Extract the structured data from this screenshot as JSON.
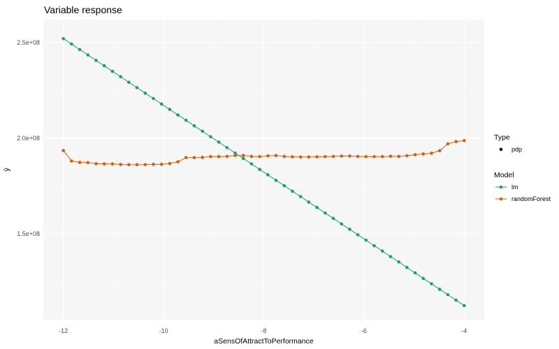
{
  "chart_data": {
    "type": "line",
    "title": "Variable response",
    "xlabel": "aSensOfAttractToPerformance",
    "ylabel": "ŷ",
    "xlim": [
      -12.4,
      -3.6
    ],
    "ylim": [
      105000000,
      262000000
    ],
    "x_ticks": [
      -12,
      -10,
      -8,
      -6,
      -4
    ],
    "x_tick_labels": [
      "-12",
      "-10",
      "-8",
      "-6",
      "-4"
    ],
    "y_ticks": [
      150000000,
      200000000,
      250000000
    ],
    "y_tick_labels": [
      "1.5e+08",
      "2.0e+08",
      "2.5e+08"
    ],
    "grid": true,
    "legend_position": "right",
    "legends": [
      {
        "title": "Type",
        "entries": [
          {
            "label": "pdp",
            "shape": "point",
            "color": "#000000"
          }
        ]
      },
      {
        "title": "Model",
        "entries": [
          {
            "label": "lm",
            "shape": "line-point",
            "color": "#1b9e77"
          },
          {
            "label": "randomForest",
            "shape": "line-point",
            "color": "#d95f02"
          }
        ]
      }
    ],
    "x": [
      -12.0,
      -11.8367,
      -11.6735,
      -11.5102,
      -11.3469,
      -11.1837,
      -11.0204,
      -10.8571,
      -10.6939,
      -10.5306,
      -10.3673,
      -10.2041,
      -10.0408,
      -9.8776,
      -9.7143,
      -9.551,
      -9.3878,
      -9.2245,
      -9.0612,
      -8.898,
      -8.7347,
      -8.5714,
      -8.4082,
      -8.2449,
      -8.0816,
      -7.9184,
      -7.7551,
      -7.5918,
      -7.4286,
      -7.2653,
      -7.102,
      -6.9388,
      -6.7755,
      -6.6122,
      -6.449,
      -6.2857,
      -6.1224,
      -5.9592,
      -5.7959,
      -5.6327,
      -5.4694,
      -5.3061,
      -5.1429,
      -4.9796,
      -4.8163,
      -4.6531,
      -4.4898,
      -4.3265,
      -4.1633,
      -4.0
    ],
    "series": [
      {
        "name": "lm",
        "color": "#1b9e77",
        "values": [
          252000000,
          249200000,
          246300000,
          243500000,
          240600000,
          237800000,
          234900000,
          232100000,
          229200000,
          226400000,
          223500000,
          220700000,
          217800000,
          215000000,
          212100000,
          209300000,
          206400000,
          203600000,
          200700000,
          197900000,
          195000000,
          192200000,
          189300000,
          186500000,
          183600000,
          180800000,
          177900000,
          175100000,
          172200000,
          169400000,
          166500000,
          163700000,
          160800000,
          158000000,
          155100000,
          152300000,
          149400000,
          146600000,
          143700000,
          140900000,
          138000000,
          135200000,
          132300000,
          129500000,
          126600000,
          123800000,
          120900000,
          118100000,
          115200000,
          112400000
        ]
      },
      {
        "name": "randomForest",
        "color": "#d95f02",
        "values": [
          193500000,
          188000000,
          187300000,
          187200000,
          186600000,
          186500000,
          186500000,
          186200000,
          186100000,
          186100000,
          186100000,
          186300000,
          186300000,
          186700000,
          187600000,
          189800000,
          189800000,
          189900000,
          190300000,
          190300000,
          190400000,
          190900000,
          190900000,
          190400000,
          190300000,
          190700000,
          190900000,
          190400000,
          190200000,
          190100000,
          190100000,
          190200000,
          190300000,
          190400000,
          190600000,
          190600000,
          190400000,
          190300000,
          190300000,
          190300000,
          190500000,
          190400000,
          190800000,
          191300000,
          191700000,
          192100000,
          193400000,
          197000000,
          198200000,
          198700000
        ]
      }
    ]
  }
}
